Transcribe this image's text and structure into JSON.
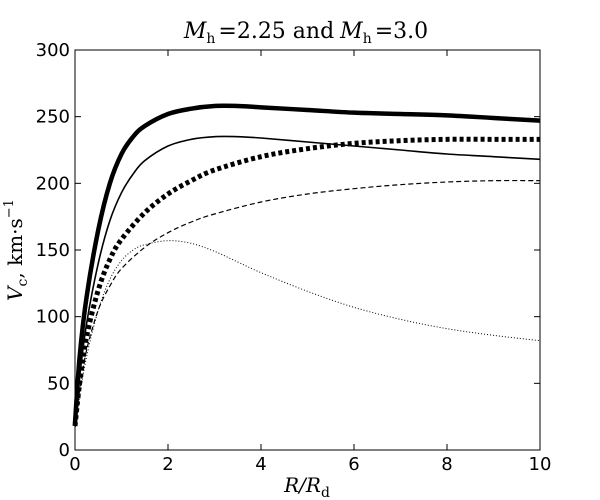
{
  "chart_data": {
    "type": "line",
    "title": "M_h = 2.25 and M_h = 3.0",
    "title_parts": {
      "m1": "M",
      "h1": "h",
      "eq1": "=2.25 and",
      "m2": "M",
      "h2": "h",
      "eq2": "=3.0"
    },
    "xlabel": "R/R_d",
    "xlabel_parts": {
      "r": "R/R",
      "sub": "d"
    },
    "ylabel": "V_c, km·s^-1",
    "ylabel_parts": {
      "v": "V",
      "sub": "c",
      "units": ", km·s",
      "sup": "−1"
    },
    "xlim": [
      0,
      10
    ],
    "ylim": [
      0,
      300
    ],
    "xticks": [
      0,
      2,
      4,
      6,
      8,
      10
    ],
    "yticks": [
      0,
      50,
      100,
      150,
      200,
      250,
      300
    ],
    "xtick_labels": [
      "0",
      "2",
      "4",
      "6",
      "8",
      "10"
    ],
    "ytick_labels": [
      "0",
      "50",
      "100",
      "150",
      "200",
      "250",
      "300"
    ],
    "grid": false,
    "series": [
      {
        "style": "solid-thick",
        "color": "#000000",
        "x": [
          0,
          0.1,
          0.25,
          0.5,
          0.75,
          1.0,
          1.25,
          1.5,
          2.0,
          2.5,
          3.0,
          3.5,
          4.0,
          5.0,
          6.0,
          7.0,
          8.0,
          9.0,
          10.0
        ],
        "y": [
          20,
          70,
          115,
          165,
          200,
          222,
          235,
          243,
          252,
          256,
          258,
          258,
          257,
          255,
          253,
          252,
          251,
          249,
          247
        ]
      },
      {
        "style": "solid-thin",
        "color": "#000000",
        "x": [
          0,
          0.1,
          0.25,
          0.5,
          0.75,
          1.0,
          1.25,
          1.5,
          2.0,
          2.5,
          3.0,
          3.5,
          4.0,
          5.0,
          6.0,
          7.0,
          8.0,
          9.0,
          10.0
        ],
        "y": [
          18,
          55,
          95,
          140,
          172,
          193,
          207,
          217,
          228,
          233,
          235,
          235,
          234,
          231,
          228,
          225,
          222,
          220,
          218
        ]
      },
      {
        "style": "dotted-thick",
        "color": "#000000",
        "x": [
          0,
          0.1,
          0.25,
          0.5,
          0.75,
          1.0,
          1.5,
          2.0,
          2.5,
          3.0,
          4.0,
          5.0,
          6.0,
          7.0,
          8.0,
          9.0,
          10.0
        ],
        "y": [
          18,
          50,
          85,
          120,
          143,
          158,
          178,
          192,
          202,
          210,
          220,
          226,
          230,
          232,
          233,
          233,
          233
        ]
      },
      {
        "style": "dashed",
        "color": "#000000",
        "x": [
          0,
          0.1,
          0.25,
          0.5,
          0.75,
          1.0,
          1.5,
          2.0,
          2.5,
          3.0,
          4.0,
          5.0,
          6.0,
          7.0,
          8.0,
          9.0,
          10.0
        ],
        "y": [
          18,
          45,
          75,
          105,
          123,
          136,
          152,
          163,
          171,
          177,
          186,
          192,
          196,
          199,
          201,
          202,
          202
        ]
      },
      {
        "style": "dotted-thin",
        "color": "#000000",
        "x": [
          0,
          0.1,
          0.25,
          0.5,
          0.75,
          1.0,
          1.25,
          1.5,
          2.0,
          2.5,
          3.0,
          3.5,
          4.0,
          5.0,
          6.0,
          7.0,
          8.0,
          9.0,
          10.0
        ],
        "y": [
          15,
          40,
          70,
          105,
          128,
          142,
          150,
          154,
          157,
          155,
          149,
          141,
          133,
          119,
          107,
          98,
          91,
          86,
          82
        ]
      }
    ]
  }
}
